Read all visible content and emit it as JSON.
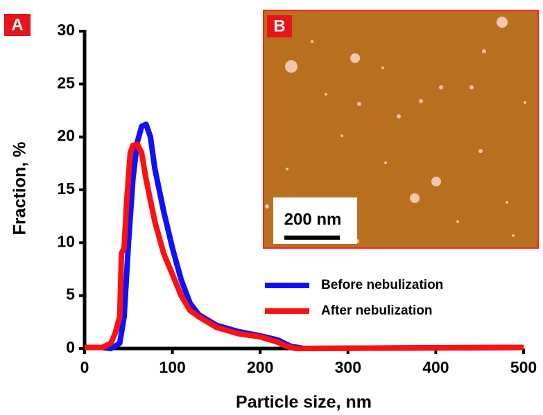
{
  "chart_data": {
    "type": "line",
    "panel_label": "A",
    "inset_label": "B",
    "scale_bar_label": "200 nm",
    "x_label": "Particle size, nm",
    "y_label": "Fraction, %",
    "xlim": [
      0,
      500
    ],
    "xticks": [
      0,
      100,
      200,
      300,
      400,
      500
    ],
    "ylim": [
      0,
      30
    ],
    "yticks": [
      0,
      5,
      10,
      15,
      20,
      25,
      30
    ],
    "series": [
      {
        "name": "Before nebulization",
        "color": "#1010ff",
        "x": [
          0,
          20,
          30,
          40,
          45,
          50,
          55,
          60,
          65,
          70,
          75,
          80,
          90,
          100,
          110,
          120,
          130,
          150,
          175,
          200,
          220,
          235,
          250,
          500
        ],
        "values": [
          0.1,
          0.1,
          0,
          0.5,
          3,
          10,
          16,
          19.5,
          21,
          21.2,
          20,
          17,
          13,
          9.5,
          6.5,
          4.3,
          3.2,
          2.2,
          1.6,
          1.2,
          0.8,
          0.2,
          0,
          0.1
        ]
      },
      {
        "name": "After nebulization",
        "color": "#ff1010",
        "x": [
          0,
          20,
          30,
          35,
          40,
          42,
          45,
          48,
          52,
          55,
          60,
          65,
          70,
          80,
          90,
          100,
          110,
          120,
          130,
          150,
          175,
          200,
          220,
          230,
          240,
          500
        ],
        "values": [
          0.1,
          0.1,
          0.5,
          1.5,
          3,
          9,
          9.5,
          14,
          18.5,
          19.2,
          19.3,
          18.5,
          16,
          12,
          9,
          7,
          5,
          3.6,
          3,
          2,
          1.4,
          1.1,
          0.6,
          0.2,
          0,
          0.1
        ]
      }
    ]
  }
}
